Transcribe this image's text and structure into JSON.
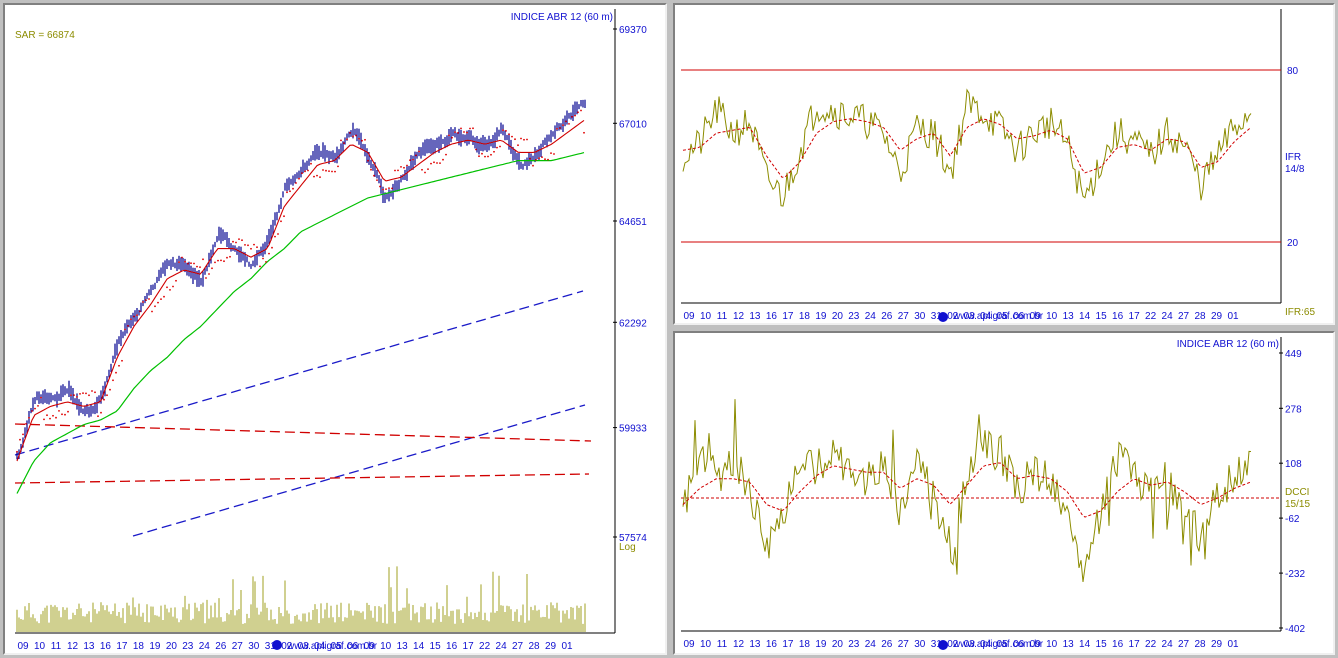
{
  "colors": {
    "axis_text": "#1010d0",
    "indicator": "#8c8c00",
    "signal": "#d00000",
    "ma_long": "#00c000",
    "bars": "#000090",
    "volume": "#a0a020",
    "trend_blue": "#1a1ac8",
    "sar_dots": "#e00000"
  },
  "price_panel": {
    "title": "INDICE ABR 12 (60 m)",
    "sar_label": "SAR = 66874",
    "log_label": "Log",
    "url_text": "www.apligraf.com.br",
    "y_ticks": [
      "69370",
      "67010",
      "64651",
      "62292",
      "59933",
      "57574"
    ],
    "x_ticks": [
      "09",
      "10",
      "11",
      "12",
      "13",
      "16",
      "17",
      "18",
      "19",
      "20",
      "23",
      "24",
      "26",
      "27",
      "30",
      "31",
      "02",
      "03",
      "04",
      "05",
      "06",
      "09",
      "10",
      "13",
      "14",
      "15",
      "16",
      "17",
      "22",
      "24",
      "27",
      "28",
      "29",
      "01"
    ]
  },
  "ifr_panel": {
    "upper_level": "80",
    "lower_level": "20",
    "indicator_name": "IFR",
    "indicator_params": "14/8",
    "current_value": "IFR:65",
    "url_text": "www.apligraf.com.br",
    "x_ticks": [
      "09",
      "10",
      "11",
      "12",
      "13",
      "16",
      "17",
      "18",
      "19",
      "20",
      "23",
      "24",
      "26",
      "27",
      "30",
      "31",
      "02",
      "03",
      "04",
      "05",
      "06",
      "09",
      "10",
      "13",
      "14",
      "15",
      "16",
      "17",
      "22",
      "24",
      "27",
      "28",
      "29",
      "01"
    ]
  },
  "dcci_panel": {
    "title": "INDICE ABR 12 (60 m)",
    "indicator_name": "DCCI",
    "indicator_params": "15/15",
    "y_ticks": [
      "449",
      "278",
      "108",
      "-62",
      "-232",
      "-402"
    ],
    "url_text": "www.apligraf.com.br",
    "x_ticks": [
      "09",
      "10",
      "11",
      "12",
      "13",
      "16",
      "17",
      "18",
      "19",
      "20",
      "23",
      "24",
      "26",
      "27",
      "30",
      "31",
      "02",
      "03",
      "04",
      "05",
      "06",
      "09",
      "10",
      "13",
      "14",
      "15",
      "16",
      "17",
      "22",
      "24",
      "27",
      "28",
      "29",
      "01"
    ]
  },
  "chart_data": [
    {
      "type": "line",
      "title": "INDICE ABR 12 (60 m)",
      "annotation": "SAR = 66874",
      "scale": "log",
      "ylim": [
        57574,
        69370
      ],
      "y_ticks": [
        69370,
        67010,
        64651,
        62292,
        59933,
        57574
      ],
      "x_tick_labels": [
        "09",
        "10",
        "11",
        "12",
        "13",
        "16",
        "17",
        "18",
        "19",
        "20",
        "23",
        "24",
        "26",
        "27",
        "30",
        "31",
        "02",
        "03",
        "04",
        "05",
        "06",
        "09",
        "10",
        "13",
        "14",
        "15",
        "16",
        "17",
        "22",
        "24",
        "27",
        "28",
        "29",
        "01"
      ],
      "series": [
        {
          "values": [
            59300,
            60700,
            60500,
            60800,
            60200,
            60600,
            61900,
            62500,
            63000,
            63700,
            63600,
            63200,
            64400,
            63900,
            63600,
            64200,
            65500,
            65900,
            66400,
            66100,
            66900,
            66200,
            65100,
            65700,
            66300,
            66500,
            66700,
            66700,
            66400,
            66900,
            65900,
            66300,
            66800,
            67200,
            67600
          ]
        },
        {
          "values": [
            59200,
            60200,
            60400,
            60500,
            60400,
            60500,
            61500,
            62200,
            62700,
            63300,
            63500,
            63400,
            64000,
            64000,
            63800,
            64000,
            65000,
            65500,
            66000,
            66100,
            66500,
            66300,
            65600,
            65700,
            66000,
            66300,
            66500,
            66600,
            66500,
            66600,
            66300,
            66300,
            66500,
            66800,
            67100
          ]
        },
        {
          "values": [
            58500,
            59200,
            59600,
            59800,
            60000,
            60100,
            60300,
            60800,
            61200,
            61500,
            61900,
            62200,
            62600,
            63000,
            63300,
            63700,
            64000,
            64400,
            64600,
            64800,
            65000,
            65200,
            65300,
            65400,
            65500,
            65600,
            65700,
            65800,
            65900,
            66000,
            66100,
            66100,
            66100,
            66200,
            66300
          ]
        }
      ]
    },
    {
      "type": "line",
      "title": "IFR 14/8",
      "annotation": "IFR:65",
      "ylim": [
        0,
        100
      ],
      "levels": [
        80,
        20
      ],
      "x_tick_labels": [
        "09",
        "10",
        "11",
        "12",
        "13",
        "16",
        "17",
        "18",
        "19",
        "20",
        "23",
        "24",
        "26",
        "27",
        "30",
        "31",
        "02",
        "03",
        "04",
        "05",
        "06",
        "09",
        "10",
        "13",
        "14",
        "15",
        "16",
        "17",
        "22",
        "24",
        "27",
        "28",
        "29",
        "01"
      ],
      "series": [
        {
          "values": [
            50,
            54,
            66,
            58,
            62,
            42,
            36,
            52,
            68,
            66,
            64,
            62,
            58,
            44,
            60,
            58,
            44,
            68,
            65,
            60,
            52,
            58,
            62,
            54,
            34,
            48,
            58,
            55,
            50,
            58,
            54,
            40,
            50,
            60,
            65
          ]
        },
        {
          "values": [
            52,
            53,
            58,
            59,
            60,
            50,
            42,
            48,
            58,
            62,
            63,
            62,
            60,
            52,
            56,
            58,
            50,
            60,
            63,
            61,
            56,
            57,
            59,
            56,
            44,
            46,
            53,
            54,
            52,
            56,
            55,
            46,
            48,
            55,
            60
          ]
        }
      ]
    },
    {
      "type": "line",
      "title": "INDICE ABR 12 (60 m)",
      "annotation": "DCCI 15/15",
      "ylim": [
        -402,
        449
      ],
      "y_ticks": [
        449,
        278,
        108,
        -62,
        -232,
        -402
      ],
      "zero_line": 0,
      "x_tick_labels": [
        "09",
        "10",
        "11",
        "12",
        "13",
        "16",
        "17",
        "18",
        "19",
        "20",
        "23",
        "24",
        "26",
        "27",
        "30",
        "31",
        "02",
        "03",
        "04",
        "05",
        "06",
        "09",
        "10",
        "13",
        "14",
        "15",
        "16",
        "17",
        "22",
        "24",
        "27",
        "28",
        "29",
        "01"
      ],
      "series": [
        {
          "values": [
            -30,
            140,
            60,
            120,
            40,
            -180,
            -60,
            130,
            90,
            150,
            80,
            60,
            110,
            -40,
            140,
            20,
            -200,
            80,
            160,
            140,
            20,
            80,
            60,
            -80,
            -220,
            -60,
            120,
            80,
            20,
            60,
            -40,
            -120,
            20,
            60,
            100
          ]
        },
        {
          "values": [
            -20,
            30,
            60,
            60,
            50,
            -20,
            -40,
            20,
            70,
            100,
            90,
            80,
            80,
            30,
            60,
            40,
            -20,
            40,
            100,
            110,
            60,
            70,
            60,
            20,
            -60,
            -40,
            20,
            60,
            40,
            50,
            20,
            -20,
            0,
            30,
            50
          ]
        }
      ]
    }
  ]
}
